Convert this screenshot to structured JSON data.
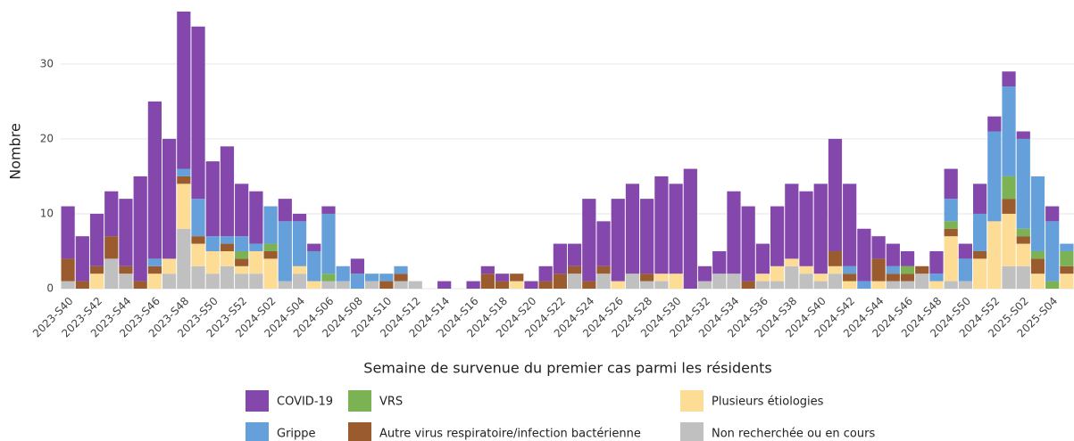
{
  "chart_data": {
    "type": "stacked-bar",
    "x_label": "Semaine de survenue du premier cas parmi les résidents",
    "y_label": "Nombre",
    "categories": [
      "2023-S40",
      null,
      "2023-S42",
      null,
      "2023-S44",
      null,
      "2023-S46",
      null,
      "2023-S48",
      null,
      "2023-S50",
      null,
      "2023-S52",
      null,
      "2024-S02",
      null,
      "2024-S04",
      null,
      "2024-S06",
      null,
      "2024-S08",
      null,
      "2024-S10",
      null,
      "2024-S12",
      null,
      "2024-S14",
      null,
      "2024-S16",
      null,
      "2024-S18",
      null,
      "2024-S20",
      null,
      "2024-S22",
      null,
      "2024-S24",
      null,
      "2024-S26",
      null,
      "2024-S28",
      null,
      "2024-S30",
      null,
      "2024-S32",
      null,
      "2024-S34",
      null,
      "2024-S36",
      null,
      "2024-S38",
      null,
      "2024-S40",
      null,
      "2024-S42",
      null,
      "2024-S44",
      null,
      "2024-S46",
      null,
      "2024-S48",
      null,
      "2024-S50",
      null,
      "2024-S52",
      null,
      "2025-S02",
      null,
      "2025-S04",
      null
    ],
    "series": [
      {
        "name": "Non recherchée ou en cours",
        "color": "#c0c0c0",
        "values": [
          1,
          0,
          0,
          4,
          2,
          0,
          0,
          2,
          8,
          3,
          2,
          3,
          2,
          2,
          0,
          1,
          2,
          0,
          1,
          1,
          0,
          1,
          0,
          1,
          1,
          0,
          0,
          0,
          0,
          0,
          0,
          0,
          0,
          0,
          0,
          2,
          0,
          2,
          0,
          2,
          1,
          1,
          0,
          0,
          1,
          2,
          2,
          0,
          1,
          1,
          3,
          2,
          1,
          2,
          0,
          0,
          0,
          1,
          1,
          2,
          0,
          1,
          1,
          0,
          0,
          3,
          3,
          0,
          0,
          0
        ]
      },
      {
        "name": "Plusieurs étiologies",
        "color": "#fddc95",
        "values": [
          0,
          0,
          2,
          0,
          0,
          0,
          2,
          2,
          6,
          3,
          3,
          2,
          1,
          3,
          4,
          0,
          1,
          1,
          0,
          0,
          0,
          0,
          0,
          0,
          0,
          0,
          0,
          0,
          0,
          0,
          0,
          1,
          0,
          0,
          0,
          0,
          0,
          0,
          1,
          0,
          0,
          1,
          2,
          0,
          0,
          0,
          0,
          0,
          1,
          2,
          1,
          1,
          1,
          1,
          1,
          0,
          1,
          0,
          0,
          0,
          1,
          6,
          0,
          4,
          9,
          7,
          3,
          2,
          0,
          2
        ]
      },
      {
        "name": "Autre virus respiratoire/infection bactérienne",
        "color": "#9a5b2e",
        "values": [
          3,
          1,
          1,
          3,
          1,
          1,
          1,
          0,
          1,
          1,
          0,
          1,
          1,
          0,
          1,
          0,
          0,
          0,
          0,
          0,
          0,
          0,
          1,
          1,
          0,
          0,
          0,
          0,
          0,
          2,
          1,
          1,
          0,
          1,
          2,
          1,
          1,
          1,
          0,
          0,
          1,
          0,
          0,
          0,
          0,
          0,
          0,
          1,
          0,
          0,
          0,
          0,
          0,
          2,
          1,
          0,
          3,
          1,
          1,
          1,
          0,
          1,
          0,
          1,
          0,
          2,
          1,
          2,
          0,
          1
        ]
      },
      {
        "name": "VRS",
        "color": "#7ab254",
        "values": [
          0,
          0,
          0,
          0,
          0,
          0,
          0,
          0,
          0,
          0,
          0,
          0,
          1,
          0,
          1,
          0,
          0,
          0,
          1,
          0,
          0,
          0,
          0,
          0,
          0,
          0,
          0,
          0,
          0,
          0,
          0,
          0,
          0,
          0,
          0,
          0,
          0,
          0,
          0,
          0,
          0,
          0,
          0,
          0,
          0,
          0,
          0,
          0,
          0,
          0,
          0,
          0,
          0,
          0,
          0,
          0,
          0,
          0,
          1,
          0,
          0,
          1,
          0,
          0,
          0,
          3,
          1,
          1,
          1,
          2
        ]
      },
      {
        "name": "Grippe",
        "color": "#65a0db",
        "values": [
          0,
          0,
          0,
          0,
          0,
          0,
          1,
          0,
          1,
          5,
          2,
          1,
          2,
          1,
          5,
          8,
          6,
          4,
          8,
          2,
          2,
          1,
          1,
          1,
          0,
          0,
          0,
          0,
          0,
          0,
          0,
          0,
          0,
          0,
          0,
          0,
          0,
          0,
          0,
          0,
          0,
          0,
          0,
          0,
          0,
          0,
          0,
          0,
          0,
          0,
          0,
          0,
          0,
          0,
          1,
          1,
          0,
          1,
          0,
          0,
          1,
          3,
          3,
          5,
          12,
          12,
          12,
          10,
          8,
          1
        ]
      },
      {
        "name": "COVID-19",
        "color": "#8447ab",
        "values": [
          7,
          6,
          7,
          6,
          9,
          14,
          21,
          16,
          21,
          23,
          10,
          12,
          7,
          7,
          0,
          3,
          1,
          1,
          1,
          0,
          2,
          0,
          0,
          0,
          0,
          0,
          1,
          0,
          1,
          1,
          1,
          0,
          1,
          2,
          4,
          3,
          11,
          6,
          11,
          12,
          10,
          13,
          12,
          16,
          2,
          3,
          11,
          10,
          4,
          8,
          10,
          10,
          12,
          15,
          11,
          7,
          3,
          3,
          2,
          0,
          3,
          4,
          2,
          4,
          2,
          2,
          1,
          0,
          2,
          0
        ]
      }
    ],
    "ylim": [
      0,
      37
    ],
    "yticks": [
      0,
      10,
      20,
      30
    ],
    "grid": true
  }
}
